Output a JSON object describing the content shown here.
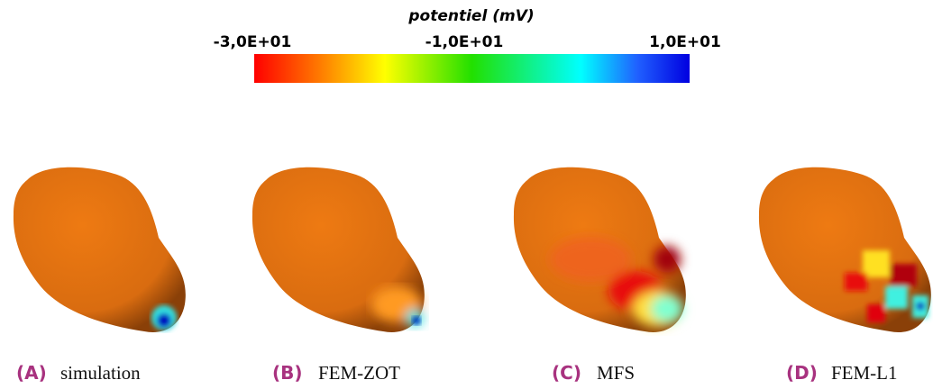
{
  "colorbar": {
    "title": "potentiel (mV)",
    "ticks": [
      "-3,0E+01",
      "-1,0E+01",
      "1,0E+01"
    ]
  },
  "panels": [
    {
      "letter": "(A)",
      "caption": "simulation"
    },
    {
      "letter": "(B)",
      "caption": "FEM-ZOT"
    },
    {
      "letter": "(C)",
      "caption": "MFS"
    },
    {
      "letter": "(D)",
      "caption": "FEM-L1"
    }
  ]
}
